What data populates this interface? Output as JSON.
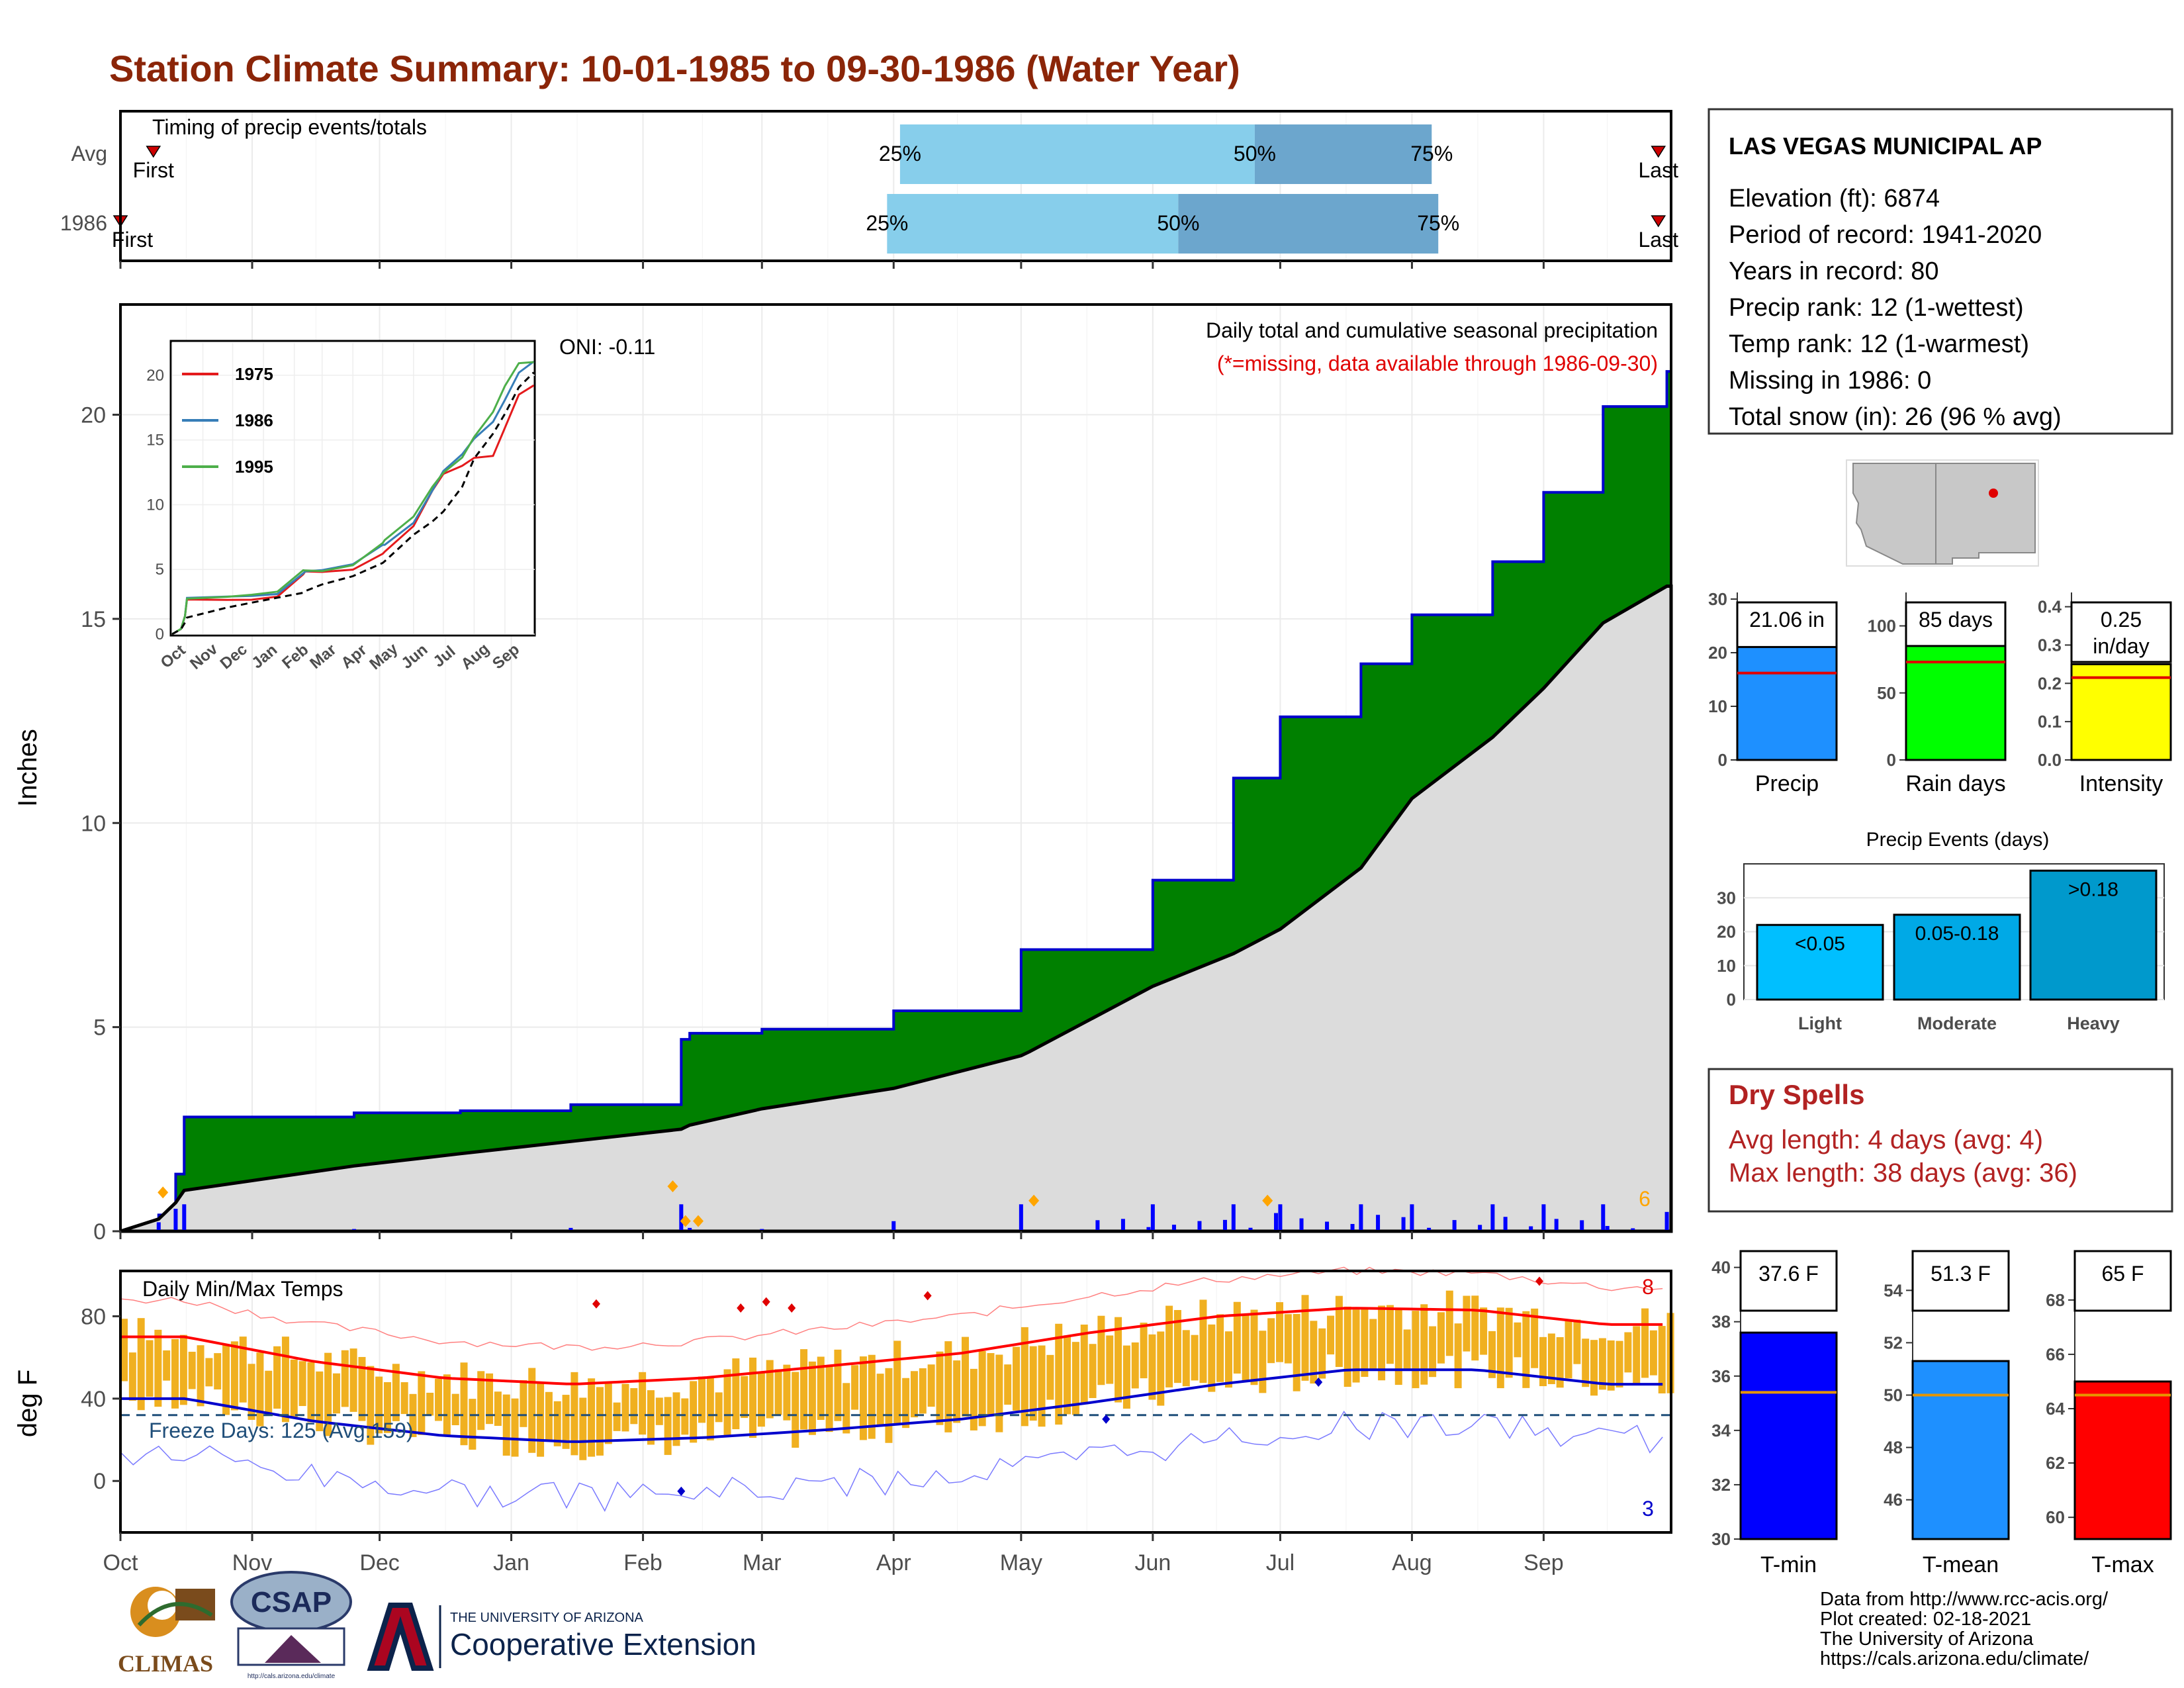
{
  "title": "Station Climate Summary: 10-01-1985 to 09-30-1986 (Water Year)",
  "colors": {
    "title": "#8b2508",
    "precip_area": "#008000",
    "precip_line": "#0000cc",
    "avg_area": "#dcdcdc",
    "bar_light": "#87ceeb",
    "bar_dark": "#6ca6cd",
    "temp_bars": "#f0b020",
    "tmax_line": "#ff0000",
    "tmin_line": "#0000cc",
    "dry_spells": "#b22222"
  },
  "timing": {
    "label": "Timing of precip events/totals",
    "rows": [
      {
        "name": "Avg",
        "first": "First",
        "last": "Last",
        "q25": "25%",
        "q50": "50%",
        "q75": "75%",
        "q25_month": 6.05,
        "q50_month": 8.8,
        "q75_month": 10.15,
        "first_month": 0.25,
        "last_month": 11.9
      },
      {
        "name": "1986",
        "first": "First",
        "last": "Last",
        "q25": "25%",
        "q50": "50%",
        "q75": "75%",
        "q25_month": 5.95,
        "q50_month": 8.2,
        "q75_month": 10.2,
        "first_month": 0.0,
        "last_month": 11.9
      }
    ]
  },
  "precip_panel": {
    "ylabel": "Inches",
    "yticks": [
      "0",
      "5",
      "10",
      "15",
      "20"
    ],
    "header": "Daily total and cumulative seasonal precipitation",
    "subheader": "(*=missing, data available through 1986-09-30)",
    "oni": "ONI: -0.11",
    "corner_count": "6"
  },
  "temp_panel": {
    "ylabel": "deg F",
    "yticks": [
      "0",
      "40",
      "80"
    ],
    "header": "Daily Min/Max Temps",
    "freeze": "Freeze Days: 125 (Avg:159)",
    "record_high_count": "8",
    "record_low_count": "3"
  },
  "months": [
    "Oct",
    "Nov",
    "Dec",
    "Jan",
    "Feb",
    "Mar",
    "Apr",
    "May",
    "Jun",
    "Jul",
    "Aug",
    "Sep"
  ],
  "inset": {
    "months": [
      "Oct",
      "Nov",
      "Dec",
      "Jan",
      "Feb",
      "Mar",
      "Apr",
      "May",
      "Jun",
      "Jul",
      "Aug",
      "Sep"
    ],
    "yticks": [
      "0",
      "5",
      "10",
      "15",
      "20"
    ],
    "legend": [
      {
        "name": "1975",
        "color": "#e41a1c"
      },
      {
        "name": "1986",
        "color": "#377eb8"
      },
      {
        "name": "1995",
        "color": "#4daf4a"
      }
    ]
  },
  "station": {
    "name": "LAS VEGAS MUNICIPAL AP",
    "lines": [
      "Elevation (ft): 6874",
      "Period of record: 1941-2020",
      "Years in record: 80",
      "Precip rank: 12 (1-wettest)",
      "Temp rank: 12 (1-warmest)",
      "Missing in 1986: 0",
      "Total snow (in): 26 (96 % avg)"
    ]
  },
  "mini_bars": [
    {
      "label": "Precip",
      "value_text": "21.06 in",
      "value": 21.06,
      "avg": 16.2,
      "ymax": 30,
      "yticks": [
        "0",
        "10",
        "20",
        "30"
      ],
      "color": "#1e90ff"
    },
    {
      "label": "Rain days",
      "value_text": "85 days",
      "value": 85,
      "avg": 73,
      "ymax": 120,
      "yticks": [
        "0",
        "50",
        "100"
      ],
      "color": "#00ff00"
    },
    {
      "label": "Intensity",
      "value_text": "0.25 in/day",
      "value": 0.25,
      "avg": 0.215,
      "ymax": 0.42,
      "yticks": [
        "0.0",
        "0.1",
        "0.2",
        "0.3",
        "0.4"
      ],
      "color": "#ffff00"
    }
  ],
  "events": {
    "title": "Precip Events (days)",
    "yticks": [
      "0",
      "10",
      "20",
      "30"
    ],
    "bars": [
      {
        "label": "Light",
        "inner": "<0.05",
        "value": 22,
        "color": "#00bfff"
      },
      {
        "label": "Moderate",
        "inner": "0.05-0.18",
        "value": 25,
        "color": "#00a9e6"
      },
      {
        "label": "Heavy",
        "inner": ">0.18",
        "value": 38,
        "color": "#0099cc"
      }
    ]
  },
  "dry_spells": {
    "title": "Dry Spells",
    "avg": "Avg length: 4 days (avg: 4)",
    "max": "Max length: 38 days (avg: 36)"
  },
  "temp_bars": [
    {
      "label": "T-min",
      "value_text": "37.6 F",
      "value": 37.6,
      "avg": 35.4,
      "ymin": 30,
      "ymax": 40.6,
      "yticks": [
        "30",
        "32",
        "34",
        "36",
        "38",
        "40"
      ],
      "color": "#0000ff"
    },
    {
      "label": "T-mean",
      "value_text": "51.3 F",
      "value": 51.3,
      "avg": 50.0,
      "ymin": 44.5,
      "ymax": 55.5,
      "yticks": [
        "46",
        "48",
        "50",
        "52",
        "54"
      ],
      "color": "#1e90ff"
    },
    {
      "label": "T-max",
      "value_text": "65 F",
      "value": 65.0,
      "avg": 64.5,
      "ymin": 59.2,
      "ymax": 69.8,
      "yticks": [
        "60",
        "62",
        "64",
        "66",
        "68"
      ],
      "color": "#ff0000"
    }
  ],
  "credits": [
    "Data from http://www.rcc-acis.org/",
    "Plot created: 02-18-2021",
    "The University of Arizona",
    "https://cals.arizona.edu/climate/"
  ],
  "logos": {
    "climas": "CLIMAS",
    "csap": "CSAP",
    "csap_url": "http://cals.arizona.edu/climate",
    "ua_small": "THE UNIVERSITY OF ARIZONA",
    "ua_big": "Cooperative Extension"
  },
  "chart_data": [
    {
      "type": "area",
      "title": "Daily total and cumulative seasonal precipitation",
      "ylabel": "Inches",
      "ylim": [
        0,
        22.7
      ],
      "x": [
        "10-01",
        "10-10",
        "10-14",
        "10-16",
        "11-25",
        "12-20",
        "01-15",
        "02-10",
        "02-12",
        "03-01",
        "04-01",
        "05-01",
        "05-03",
        "06-01",
        "06-20",
        "07-01",
        "07-20",
        "08-01",
        "08-20",
        "09-01",
        "09-15",
        "09-30"
      ],
      "series": [
        {
          "name": "",
          "values": [
            0,
            0.4,
            1.4,
            2.8,
            2.9,
            2.95,
            3.1,
            4.7,
            4.85,
            4.95,
            5.4,
            6.9,
            6.9,
            8.6,
            11.1,
            12.6,
            13.9,
            15.1,
            16.4,
            18.1,
            20.2,
            21.06
          ]
        },
        {
          "name": "",
          "values": [
            0,
            0.3,
            0.7,
            1.0,
            1.6,
            1.9,
            2.2,
            2.5,
            2.6,
            3.0,
            3.5,
            4.3,
            4.4,
            6.0,
            6.8,
            7.4,
            8.9,
            10.6,
            12.1,
            13.3,
            14.9,
            15.8
          ]
        }
      ]
    },
    {
      "type": "line",
      "title": "Daily Min/Max Temps",
      "ylabel": "deg F",
      "ylim": [
        -25,
        102
      ],
      "x": [
        "Oct",
        "Nov",
        "Dec",
        "Jan",
        "Feb",
        "Mar",
        "Apr",
        "May",
        "Jun",
        "Jul",
        "Aug",
        "Sep"
      ],
      "series": [
        {
          "name": "",
          "values": [
            70,
            58,
            50,
            47,
            50,
            56,
            62,
            72,
            80,
            84,
            83,
            76
          ]
        },
        {
          "name": "",
          "values": [
            40,
            29,
            22,
            19,
            21,
            25,
            30,
            38,
            47,
            54,
            54,
            47
          ]
        }
      ]
    }
  ]
}
